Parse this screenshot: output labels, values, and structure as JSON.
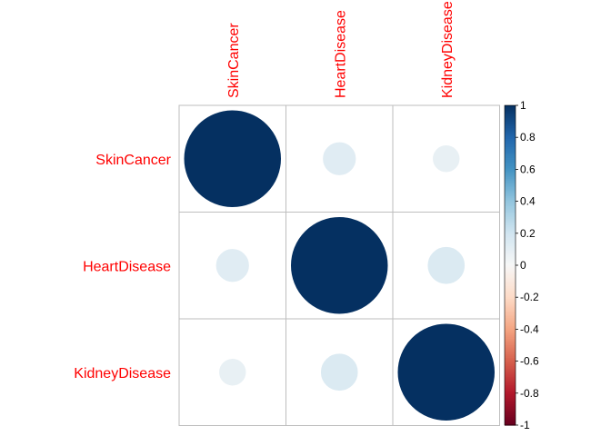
{
  "chart_data": {
    "type": "heatmap",
    "title": "",
    "method": "circle",
    "variables": [
      "SkinCancer",
      "HeartDisease",
      "KidneyDisease"
    ],
    "matrix": [
      [
        1.0,
        0.12,
        0.08
      ],
      [
        0.12,
        1.0,
        0.15
      ],
      [
        0.08,
        0.15,
        1.0
      ]
    ],
    "colorbar": {
      "range": [
        -1,
        1
      ],
      "ticks": [
        "1",
        "0.8",
        "0.6",
        "0.4",
        "0.2",
        "0",
        "-0.2",
        "-0.4",
        "-0.6",
        "-0.8",
        "-1"
      ],
      "placement": "right"
    },
    "colors": {
      "label": "#ff0000",
      "grid": "#bebebe",
      "negative_end": "#67001f",
      "neutral": "#f7f7f7",
      "positive_end": "#053061"
    }
  }
}
